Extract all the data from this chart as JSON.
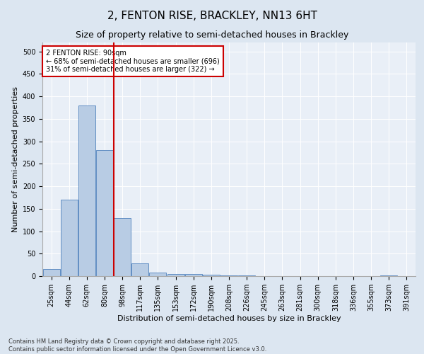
{
  "title": "2, FENTON RISE, BRACKLEY, NN13 6HT",
  "subtitle": "Size of property relative to semi-detached houses in Brackley",
  "xlabel": "Distribution of semi-detached houses by size in Brackley",
  "ylabel": "Number of semi-detached properties",
  "categories": [
    "25sqm",
    "44sqm",
    "62sqm",
    "80sqm",
    "98sqm",
    "117sqm",
    "135sqm",
    "153sqm",
    "172sqm",
    "190sqm",
    "208sqm",
    "226sqm",
    "245sqm",
    "263sqm",
    "281sqm",
    "300sqm",
    "318sqm",
    "336sqm",
    "355sqm",
    "373sqm",
    "391sqm"
  ],
  "values": [
    15,
    170,
    380,
    280,
    130,
    28,
    8,
    5,
    5,
    3,
    2,
    1,
    0,
    0,
    0,
    0,
    0,
    0,
    0,
    2,
    0
  ],
  "bar_color": "#b8cce4",
  "bar_edge_color": "#4f81bd",
  "vline_color": "#cc0000",
  "annotation_text": "2 FENTON RISE: 90sqm\n← 68% of semi-detached houses are smaller (696)\n31% of semi-detached houses are larger (322) →",
  "annotation_box_color": "#cc0000",
  "footer": "Contains HM Land Registry data © Crown copyright and database right 2025.\nContains public sector information licensed under the Open Government Licence v3.0.",
  "ylim": [
    0,
    520
  ],
  "yticks": [
    0,
    50,
    100,
    150,
    200,
    250,
    300,
    350,
    400,
    450,
    500
  ],
  "title_fontsize": 11,
  "subtitle_fontsize": 9,
  "axis_label_fontsize": 8,
  "tick_fontsize": 7,
  "annotation_fontsize": 7,
  "footer_fontsize": 6,
  "bg_color": "#dce6f1",
  "plot_bg_color": "#e9eff7"
}
